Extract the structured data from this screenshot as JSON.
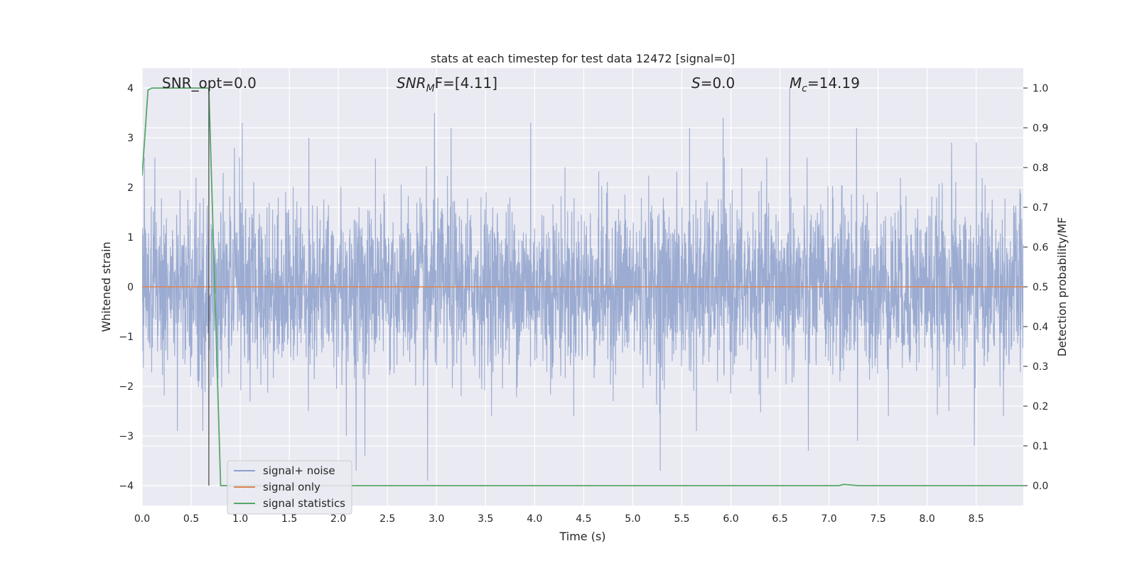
{
  "chart_data": {
    "type": "line",
    "title": "stats at each timestep for test data 12472 [signal=0]",
    "xlabel": "Time (s)",
    "ylabel_left": "Whitened strain",
    "ylabel_right": "Detection probability/MF",
    "xlim": [
      0.0,
      8.98
    ],
    "ylim_left": [
      -4.4,
      4.4
    ],
    "ylim_right": [
      -0.05,
      1.05
    ],
    "x_ticks": [
      "0.0",
      "0.5",
      "1.0",
      "1.5",
      "2.0",
      "2.5",
      "3.0",
      "3.5",
      "4.0",
      "4.5",
      "5.0",
      "5.5",
      "6.0",
      "6.5",
      "7.0",
      "7.5",
      "8.0",
      "8.5"
    ],
    "y_ticks_left": [
      "−4",
      "−3",
      "−2",
      "−1",
      "0",
      "1",
      "2",
      "3",
      "4"
    ],
    "y_ticks_right": [
      "0.0",
      "0.1",
      "0.2",
      "0.3",
      "0.4",
      "0.5",
      "0.6",
      "0.7",
      "0.8",
      "0.9",
      "1.0"
    ],
    "grid": true,
    "legend_position": "lower-left",
    "annotations": [
      {
        "name": "snr-opt",
        "text": "SNR_opt=0.0"
      },
      {
        "name": "snr-mf",
        "text_main": "SNR",
        "text_sub": "M",
        "text_tail": "F=[4.11]"
      },
      {
        "name": "s-stat",
        "text_main": "S",
        "text_tail": "=0.0"
      },
      {
        "name": "chirp-mass",
        "text_main": "M",
        "text_sub": "c",
        "text_tail": "=14.19"
      }
    ],
    "vertical_marker": {
      "x": 0.68,
      "y_from": -4.0,
      "y_to": 4.0
    },
    "series": [
      {
        "name": "signal+ noise",
        "color": "#8da0cb",
        "axis": "left",
        "style": "dense-noise",
        "rms": 0.85,
        "x_range": [
          0.0,
          8.98
        ],
        "peaks": [
          {
            "x": 0.55,
            "y": 2.2
          },
          {
            "x": 0.94,
            "y": 2.8
          },
          {
            "x": 1.02,
            "y": 3.3
          },
          {
            "x": 1.7,
            "y": 3.0
          },
          {
            "x": 2.98,
            "y": 3.5
          },
          {
            "x": 3.15,
            "y": 3.2
          },
          {
            "x": 3.96,
            "y": 3.3
          },
          {
            "x": 5.58,
            "y": 3.2
          },
          {
            "x": 5.92,
            "y": 3.4
          },
          {
            "x": 6.6,
            "y": 4.0
          },
          {
            "x": 7.28,
            "y": 3.2
          },
          {
            "x": 8.25,
            "y": 2.9
          },
          {
            "x": 8.5,
            "y": 2.9
          },
          {
            "x": 0.36,
            "y": -2.9
          },
          {
            "x": 0.62,
            "y": -2.9
          },
          {
            "x": 2.08,
            "y": -3.0
          },
          {
            "x": 2.18,
            "y": -3.7
          },
          {
            "x": 2.27,
            "y": -3.4
          },
          {
            "x": 2.91,
            "y": -3.9
          },
          {
            "x": 5.28,
            "y": -3.7
          },
          {
            "x": 5.65,
            "y": -2.9
          },
          {
            "x": 6.79,
            "y": -3.3
          },
          {
            "x": 7.29,
            "y": -3.1
          },
          {
            "x": 8.48,
            "y": -3.2
          }
        ]
      },
      {
        "name": "signal only",
        "color": "#dd8452",
        "axis": "left",
        "x": [
          0.0,
          8.98
        ],
        "y": [
          0.0,
          0.0
        ]
      },
      {
        "name": "signal statistics",
        "color": "#55a868",
        "axis": "right",
        "x": [
          0.0,
          0.06,
          0.1,
          0.15,
          0.2,
          0.3,
          0.4,
          0.5,
          0.6,
          0.68,
          0.8,
          0.9,
          1.5,
          2.0,
          3.0,
          4.0,
          5.0,
          6.0,
          7.0,
          7.1,
          7.15,
          7.3,
          7.5,
          8.0,
          8.98
        ],
        "y": [
          0.78,
          0.995,
          1.0,
          1.0,
          1.0,
          1.0,
          1.0,
          1.0,
          1.0,
          1.0,
          0.0,
          0.0,
          0.0,
          0.0,
          0.0,
          0.0,
          0.0,
          0.0,
          0.0,
          0.0,
          0.003,
          0.0,
          0.0,
          0.0,
          0.0
        ]
      }
    ]
  }
}
